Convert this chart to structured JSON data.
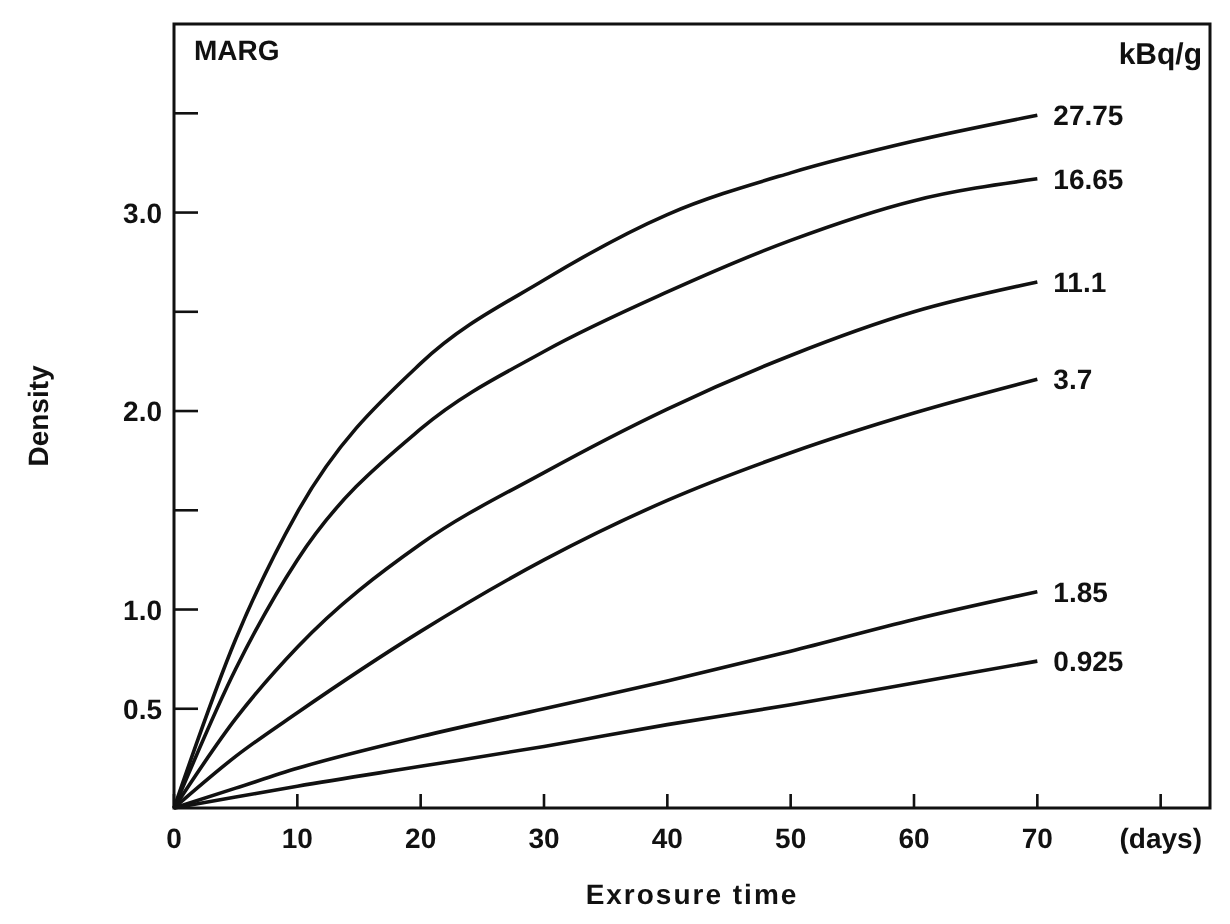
{
  "chart_data": {
    "type": "line",
    "xlabel": "Exrosure time",
    "ylabel": "Density",
    "legend_title": "kBq/g",
    "annotations": [
      "MARG",
      "(days)"
    ],
    "x": [
      0,
      5,
      10,
      20,
      30,
      40,
      50,
      60,
      70
    ],
    "series": [
      {
        "name": "27.75",
        "color": "#111111",
        "values": [
          0,
          0.85,
          1.49,
          2.24,
          2.66,
          2.99,
          3.2,
          3.36,
          3.49
        ]
      },
      {
        "name": "16.65",
        "color": "#111111",
        "values": [
          0,
          0.7,
          1.25,
          1.91,
          2.3,
          2.6,
          2.86,
          3.06,
          3.17
        ]
      },
      {
        "name": "11.1",
        "color": "#111111",
        "values": [
          0,
          0.45,
          0.81,
          1.33,
          1.69,
          2.01,
          2.28,
          2.5,
          2.65
        ]
      },
      {
        "name": "3.7",
        "color": "#111111",
        "values": [
          0,
          0.26,
          0.48,
          0.89,
          1.25,
          1.55,
          1.79,
          1.99,
          2.16
        ]
      },
      {
        "name": "1.85",
        "color": "#111111",
        "values": [
          0,
          0.1,
          0.2,
          0.36,
          0.5,
          0.64,
          0.79,
          0.95,
          1.09
        ]
      },
      {
        "name": "0.925",
        "color": "#111111",
        "values": [
          0,
          0.055,
          0.11,
          0.21,
          0.31,
          0.42,
          0.52,
          0.63,
          0.74
        ]
      }
    ],
    "xlim": [
      0,
      84
    ],
    "ylim": [
      0,
      3.95
    ],
    "xticks": [
      0,
      10,
      20,
      30,
      40,
      50,
      60,
      70,
      {
        "value": 80,
        "label": null
      }
    ],
    "yticks": [
      {
        "value": 0.5,
        "label": "0.5"
      },
      {
        "value": 1,
        "label": "1.0"
      },
      {
        "value": 1.5,
        "label": null
      },
      {
        "value": 2,
        "label": "2.0"
      },
      {
        "value": 2.5,
        "label": null
      },
      {
        "value": 3,
        "label": "3.0"
      },
      {
        "value": 3.5,
        "label": null
      }
    ],
    "grid": false,
    "legend": false,
    "marker": "none",
    "line_style": "solid"
  }
}
